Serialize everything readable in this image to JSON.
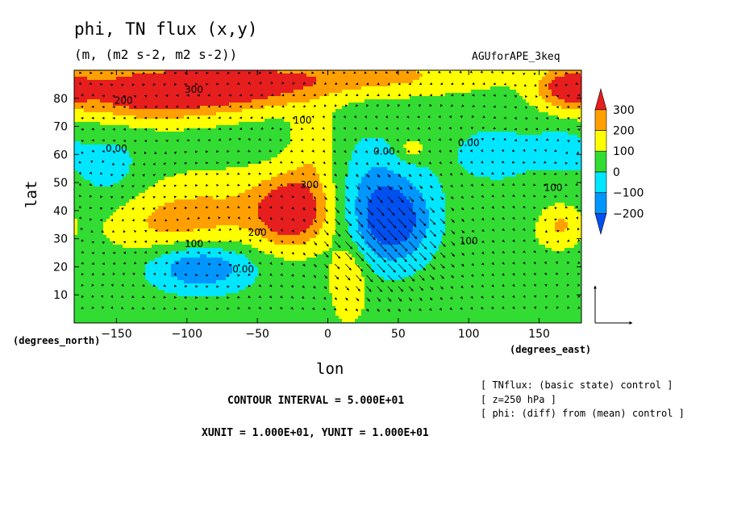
{
  "chart_data": {
    "type": "filled-contour",
    "title": "phi, TN flux (x,y)",
    "units_line": "(m, (m2 s-2, m2 s-2))",
    "run_name": "AGUforAPE_3keq",
    "xlabel": "lon",
    "ylabel": "lat",
    "x_unit_label": "(degrees_east)",
    "y_unit_label": "(degrees_north)",
    "x_range": [
      -180,
      180
    ],
    "y_range": [
      0,
      90
    ],
    "x_ticks": [
      -150,
      -100,
      -50,
      0,
      50,
      100,
      150
    ],
    "x_tick_labels": [
      "−150",
      "−100",
      "−50",
      "0",
      "50",
      "100",
      "150"
    ],
    "y_ticks": [
      10,
      20,
      30,
      40,
      50,
      60,
      70,
      80
    ],
    "y_tick_labels": [
      "10",
      "20",
      "30",
      "40",
      "50",
      "60",
      "70",
      "80"
    ],
    "colorbar": {
      "levels": [
        -200,
        -100,
        0,
        100,
        200,
        300
      ],
      "labels": [
        "−200",
        "−100",
        "0",
        "100",
        "200",
        "300"
      ],
      "colors": [
        "#0050f0",
        "#0096ff",
        "#00e6ff",
        "#32dc32",
        "#ffff00",
        "#ffa000",
        "#e61e1e"
      ]
    },
    "contour_labels": [
      {
        "text": "200",
        "lon": -145,
        "lat": 78
      },
      {
        "text": "300",
        "lon": -95,
        "lat": 82
      },
      {
        "text": "100",
        "lon": -18,
        "lat": 71
      },
      {
        "text": "0.00",
        "lon": 40,
        "lat": 60
      },
      {
        "text": "0.00",
        "lon": 100,
        "lat": 63
      },
      {
        "text": "0.00",
        "lon": -150,
        "lat": 61
      },
      {
        "text": "100",
        "lon": 160,
        "lat": 47
      },
      {
        "text": "300",
        "lon": -13,
        "lat": 48
      },
      {
        "text": "200",
        "lon": -50,
        "lat": 31
      },
      {
        "text": "100",
        "lon": -95,
        "lat": 27
      },
      {
        "text": "0.00",
        "lon": -60,
        "lat": 18
      },
      {
        "text": "100",
        "lon": 100,
        "lat": 28
      }
    ],
    "vector_reference": {
      "xunit": 10,
      "yunit": 10
    }
  },
  "contour_interval": "CONTOUR INTERVAL = 5.000E+01",
  "unit_scales": "XUNIT = 1.000E+01, YUNIT = 1.000E+01",
  "notes": [
    "[ TNflux: (basic state) control ]",
    "[ z=250 hPa ]",
    "[ phi: (diff) from (mean) control ]"
  ]
}
